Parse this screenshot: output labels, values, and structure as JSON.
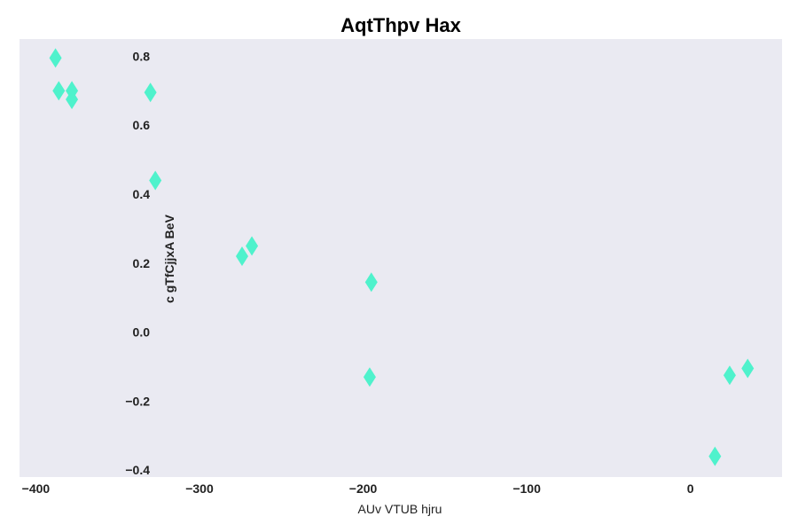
{
  "chart_data": {
    "type": "scatter",
    "title": "AqtThpv Hax",
    "xlabel": "AUv VTUB hjru",
    "ylabel": "c gTfCjjxA BeV",
    "xlim": [
      -410,
      56
    ],
    "ylim": [
      -0.42,
      0.85
    ],
    "xticks": [
      -400,
      -300,
      -200,
      -100,
      0
    ],
    "xtick_labels": [
      "−400",
      "−300",
      "−200",
      "−100",
      "0"
    ],
    "yticks": [
      0.8,
      0.6,
      0.4,
      0.2,
      0.0,
      -0.2,
      -0.4
    ],
    "ytick_labels": [
      "0.8",
      "0.6",
      "0.4",
      "0.2",
      "0.0",
      "−0.2",
      "−0.4"
    ],
    "grid": false,
    "background": "#EAEAF2",
    "marker_color": "#4FF2CC",
    "marker": "diamond",
    "points": [
      {
        "x": -388,
        "y": 0.795
      },
      {
        "x": -386,
        "y": 0.7
      },
      {
        "x": -378,
        "y": 0.7
      },
      {
        "x": -378,
        "y": 0.675
      },
      {
        "x": -330,
        "y": 0.695
      },
      {
        "x": -327,
        "y": 0.44
      },
      {
        "x": -274,
        "y": 0.22
      },
      {
        "x": -268,
        "y": 0.25
      },
      {
        "x": -195,
        "y": 0.145
      },
      {
        "x": -196,
        "y": -0.13
      },
      {
        "x": 15,
        "y": -0.36
      },
      {
        "x": 24,
        "y": -0.125
      },
      {
        "x": 35,
        "y": -0.105
      }
    ]
  }
}
